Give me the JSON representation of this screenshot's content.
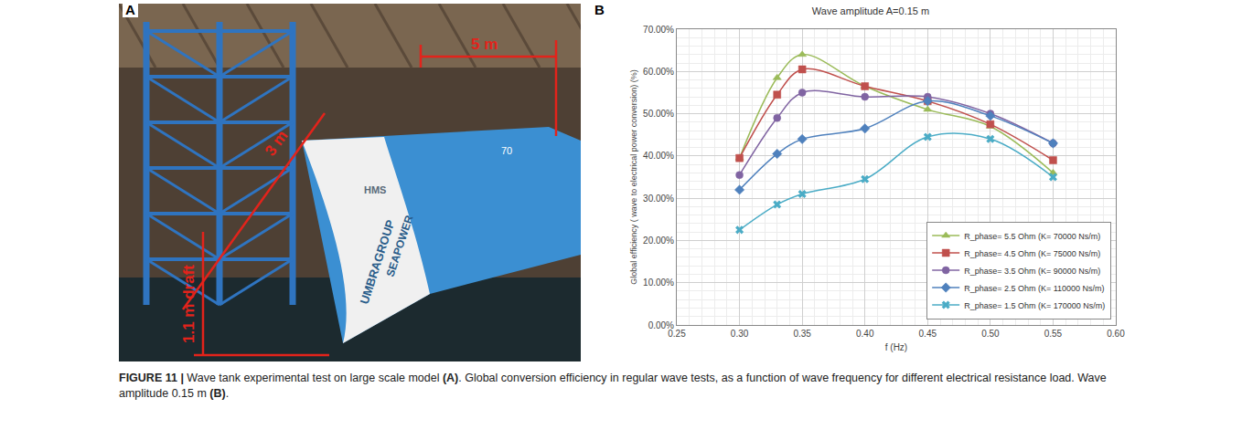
{
  "panels": {
    "a": {
      "letter": "A",
      "dimensions": [
        "5 m",
        "3 m",
        "1.1 m draft"
      ],
      "hull_texts": [
        "HMS",
        "SEAPOWER",
        "UMBRAGROUP",
        "70"
      ]
    },
    "b": {
      "letter": "B"
    }
  },
  "chart_data": {
    "type": "line",
    "title": "Wave amplitude A=0.15 m",
    "x_label": "f (Hz)",
    "y_label": "Global efficiency ( wave to electrical power conversion) (%)",
    "x": [
      0.3,
      0.33,
      0.35,
      0.4,
      0.45,
      0.5,
      0.55
    ],
    "series": [
      {
        "name": "R_phase= 5.5 Ohm (K= 70000 Ns/m)",
        "color": "#9bbb59",
        "marker": "triangle-up",
        "line_style": "solid",
        "values": [
          39.5,
          58.5,
          64,
          56.5,
          51,
          47,
          36
        ]
      },
      {
        "name": "R_phase= 4.5 Ohm (K= 75000 Ns/m)",
        "color": "#c0504d",
        "marker": "square",
        "line_style": "solid",
        "values": [
          39.5,
          54.5,
          60.5,
          56.5,
          53,
          47.5,
          39
        ]
      },
      {
        "name": "R_phase= 3.5 Ohm (K= 90000 Ns/m)",
        "color": "#8064a2",
        "marker": "circle",
        "line_style": "solid",
        "values": [
          35.5,
          49,
          55,
          54,
          54,
          50,
          43
        ]
      },
      {
        "name": "R_phase= 2.5 Ohm (K= 110000 Ns/m)",
        "color": "#4f81bd",
        "marker": "diamond",
        "line_style": "solid",
        "values": [
          32,
          40.5,
          44,
          46.5,
          53,
          49.5,
          43
        ]
      },
      {
        "name": "R_phase= 1.5 Ohm (K= 170000 Ns/m)",
        "color": "#4bacc6",
        "marker": "x",
        "line_style": "solid",
        "values": [
          22.5,
          28.5,
          31,
          34.5,
          44.5,
          44,
          35
        ]
      }
    ],
    "xlim": [
      0.25,
      0.6
    ],
    "xticks": [
      0.25,
      {
        "value": 0.3,
        "label": "0.30"
      },
      0.35,
      {
        "value": 0.4,
        "label": "0.40"
      },
      0.45,
      {
        "value": 0.5,
        "label": "0.50"
      },
      0.55,
      {
        "value": 0.6,
        "label": "0.60"
      }
    ],
    "ylim": [
      0,
      70
    ],
    "yticks": [
      {
        "value": 0,
        "label": "0.00%"
      },
      {
        "value": 10,
        "label": "10.00%"
      },
      {
        "value": 20,
        "label": "20.00%"
      },
      {
        "value": 30,
        "label": "30.00%"
      },
      {
        "value": 40,
        "label": "40.00%"
      },
      {
        "value": 50,
        "label": "50.00%"
      },
      {
        "value": 60,
        "label": "60.00%"
      },
      {
        "value": 70,
        "label": "70.00%"
      }
    ],
    "grid": true,
    "legend": "bottom right"
  },
  "caption": [
    {
      "text": "FIGURE 11 | ",
      "bold": true
    },
    {
      "text": "Wave tank experimental test on large scale model ",
      "bold": false
    },
    {
      "text": "(A)",
      "bold": true
    },
    {
      "text": ". Global conversion efficiency in regular wave tests, as a function of wave frequency for different electrical resistance load. Wave amplitude 0.15 m ",
      "bold": false
    },
    {
      "text": "(B)",
      "bold": true
    },
    {
      "text": ".",
      "bold": false
    }
  ]
}
